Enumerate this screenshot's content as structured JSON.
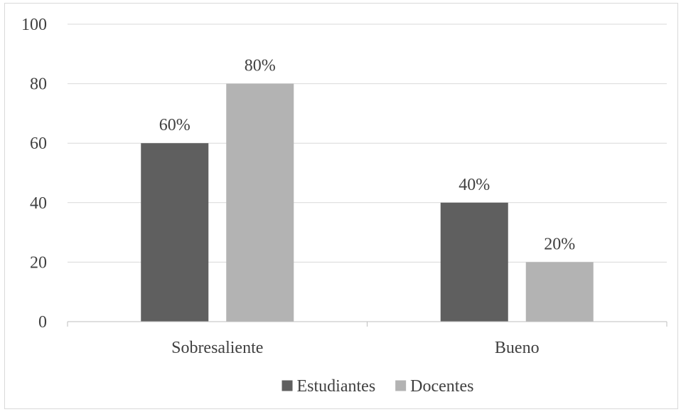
{
  "chart_data": {
    "type": "bar",
    "categories": [
      "Sobresaliente",
      "Bueno"
    ],
    "series": [
      {
        "name": "Estudiantes",
        "values": [
          60,
          40
        ],
        "labels": [
          "60%",
          "40%"
        ],
        "color": "#5f5f5f"
      },
      {
        "name": "Docentes",
        "values": [
          80,
          20
        ],
        "labels": [
          "80%",
          "20%"
        ],
        "color": "#b3b3b3"
      }
    ],
    "ylim": [
      0,
      100
    ],
    "yticks": [
      0,
      20,
      40,
      60,
      80,
      100
    ],
    "grid": true,
    "legend_position": "bottom"
  },
  "colors": {
    "gridline": "#d9d9d9",
    "axis_line": "#bfbfbf",
    "text": "#404040"
  }
}
